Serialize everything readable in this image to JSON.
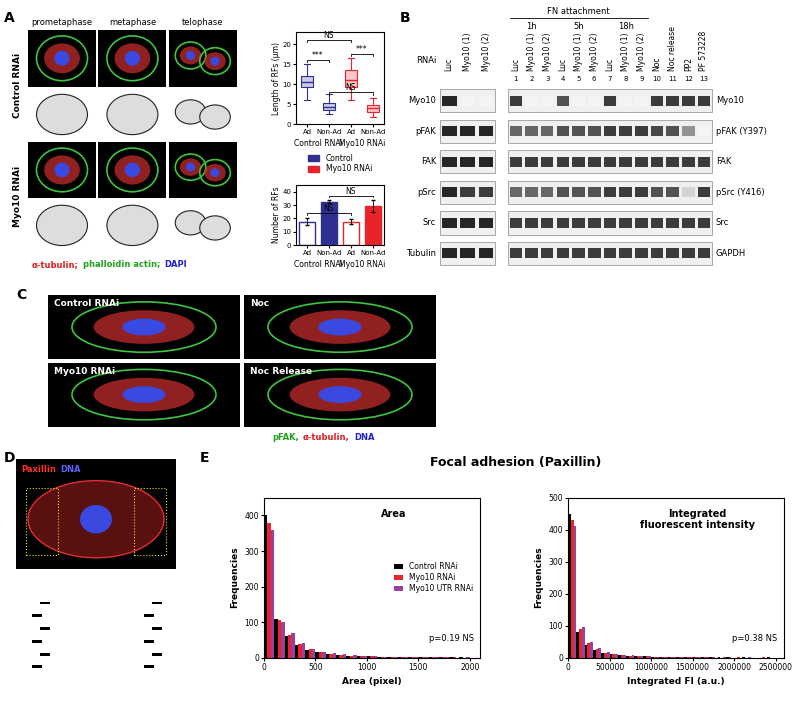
{
  "chart_data": [
    {
      "type": "box",
      "y_label": "Length of RFs (μm)",
      "categories": [
        "Ad",
        "Non-Ad",
        "Ad",
        "Non-Ad"
      ],
      "group_labels": [
        "Control RNAi",
        "Myo10 RNAi"
      ],
      "ylim": [
        0,
        23
      ],
      "yticks": [
        0,
        5,
        10,
        15,
        20
      ],
      "legend": "upper center",
      "series": [
        {
          "name": "Control",
          "color": "#2f3192",
          "stats": [
            {
              "whisker_low": 6,
              "q1": 9.2,
              "median": 10.5,
              "q3": 12,
              "whisker_high": 15
            },
            {
              "whisker_low": 2.6,
              "q1": 3.6,
              "median": 4.3,
              "q3": 5.3,
              "whisker_high": 7.5
            },
            null,
            null
          ]
        },
        {
          "name": "Myo10 RNAi",
          "color": "#e8232a",
          "stats": [
            null,
            null,
            {
              "whisker_low": 6,
              "q1": 9.3,
              "median": 11,
              "q3": 13.5,
              "whisker_high": 16.5
            },
            {
              "whisker_low": 1.8,
              "q1": 3,
              "median": 4,
              "q3": 4.8,
              "whisker_high": 6.5
            }
          ]
        }
      ],
      "annotations": [
        {
          "text": "NS",
          "from": 0,
          "to": 2,
          "y": 21
        },
        {
          "text": "***",
          "from": 0,
          "to": 1,
          "y": 16
        },
        {
          "text": "***",
          "from": 2,
          "to": 3,
          "y": 17.5
        },
        {
          "text": "NS",
          "from": 1,
          "to": 3,
          "y": 8
        }
      ]
    },
    {
      "type": "bar",
      "y_label": "Number of RFs",
      "categories": [
        "Ad",
        "Non-Ad",
        "Ad",
        "Non-Ad"
      ],
      "group_labels": [
        "Control RNAi",
        "Myo10 RNAi"
      ],
      "ylim": [
        0,
        45
      ],
      "yticks": [
        0,
        10,
        20,
        30,
        40
      ],
      "series": [
        {
          "color": "#2f3192",
          "values": [
            17.5,
            32.5,
            null,
            null
          ],
          "errors": [
            2.5,
            1,
            null,
            null
          ]
        },
        {
          "color": "#e8232a",
          "values": [
            null,
            null,
            17.5,
            29
          ],
          "errors": [
            null,
            null,
            2,
            4.5
          ]
        }
      ],
      "annotations": [
        {
          "text": "NS",
          "from": 0,
          "to": 2,
          "y": 24
        },
        {
          "text": "NS",
          "from": 1,
          "to": 3,
          "y": 37
        }
      ]
    },
    {
      "type": "histogram",
      "title": "Area",
      "x_label": "Area (pixel)",
      "y_label": "Frequencies",
      "bins": [
        0,
        100,
        200,
        300,
        400,
        500,
        600,
        700,
        800,
        900,
        1000,
        1100,
        1200,
        1300,
        1400,
        1500,
        1600,
        1700,
        1800,
        1900,
        2000
      ],
      "series": [
        {
          "name": "Control RNAi",
          "color": "#000000",
          "counts": [
            400,
            110,
            60,
            35,
            22,
            15,
            10,
            8,
            6,
            5,
            4,
            3,
            3,
            2,
            2,
            1,
            1,
            1,
            1,
            1
          ]
        },
        {
          "name": "Myo10 RNAi",
          "color": "#e8232a",
          "counts": [
            380,
            105,
            65,
            38,
            24,
            16,
            11,
            8,
            6,
            5,
            4,
            3,
            2,
            2,
            2,
            1,
            1,
            1,
            1,
            0
          ]
        },
        {
          "name": "Myo10 UTR RNAi",
          "color": "#9b3fa0",
          "counts": [
            360,
            100,
            70,
            40,
            25,
            17,
            12,
            9,
            7,
            5,
            4,
            3,
            3,
            2,
            1,
            1,
            1,
            1,
            0,
            1
          ]
        }
      ],
      "xlim": [
        0,
        2100
      ],
      "xticks": [
        0,
        500,
        1000,
        1500,
        2000
      ],
      "ylim": [
        0,
        450
      ],
      "yticks": [
        0,
        100,
        200,
        300,
        400
      ],
      "legend": "center right",
      "annotations": [
        "p=0.19 NS"
      ]
    },
    {
      "type": "histogram",
      "title": "Integrated\nfluorescent intensity",
      "x_label": "Integrated FI (a.u.)",
      "y_label": "Frequencies",
      "bins": [
        0,
        100000,
        200000,
        300000,
        400000,
        500000,
        600000,
        700000,
        800000,
        900000,
        1000000,
        1100000,
        1200000,
        1300000,
        1400000,
        1500000,
        1600000,
        1700000,
        1800000,
        1900000,
        2000000,
        2100000,
        2200000,
        2300000,
        2400000,
        2500000
      ],
      "series": [
        {
          "color": "#000000",
          "counts": [
            450,
            80,
            40,
            25,
            15,
            10,
            8,
            6,
            5,
            4,
            3,
            3,
            2,
            2,
            2,
            1,
            1,
            1,
            1,
            1,
            0,
            1,
            0,
            0,
            1
          ]
        },
        {
          "color": "#e8232a",
          "counts": [
            430,
            90,
            45,
            28,
            16,
            11,
            8,
            6,
            5,
            4,
            3,
            2,
            2,
            2,
            1,
            1,
            1,
            1,
            0,
            1,
            1,
            0,
            0,
            1,
            0
          ]
        },
        {
          "color": "#9b3fa0",
          "counts": [
            410,
            95,
            50,
            30,
            18,
            12,
            9,
            7,
            5,
            4,
            3,
            3,
            2,
            1,
            1,
            1,
            1,
            0,
            1,
            0,
            0,
            1,
            0,
            0,
            0
          ]
        }
      ],
      "xlim": [
        0,
        2600000
      ],
      "xticks": [
        0,
        500000,
        1000000,
        1500000,
        2000000,
        2500000
      ],
      "ylim": [
        0,
        500
      ],
      "yticks": [
        0,
        100,
        200,
        300,
        400,
        500
      ],
      "annotations": [
        "p=0.38 NS"
      ]
    }
  ],
  "panel_labels": [
    "A",
    "B",
    "C",
    "D",
    "E"
  ],
  "panel_a": {
    "stages": [
      "prometaphase",
      "metaphase",
      "telophase"
    ],
    "rows": [
      "Control RNAi",
      "Myo10 RNAi"
    ],
    "stain_caption": [
      {
        "text": "α-tubulin;",
        "color": "#e02020"
      },
      {
        "text": "phalloidin actin;",
        "color": "#1fa01f"
      },
      {
        "text": "DAPI",
        "color": "#2020d0"
      }
    ]
  },
  "panel_b": {
    "left_blot": {
      "lane_header": "RNAi",
      "lanes": [
        "Luc",
        "Myo10 (1)",
        "Myo10 (2)"
      ],
      "rows": [
        {
          "label": "Myo10",
          "band_intensity": [
            1,
            0.05,
            0.05
          ]
        },
        {
          "label": "pFAK",
          "band_intensity": [
            1,
            1,
            1
          ]
        },
        {
          "label": "FAK",
          "band_intensity": [
            1,
            1,
            1
          ]
        },
        {
          "label": "pSrc",
          "band_intensity": [
            1,
            0.9,
            0.9
          ]
        },
        {
          "label": "Src",
          "band_intensity": [
            1,
            1,
            1
          ]
        },
        {
          "label": "Tubulin",
          "band_intensity": [
            1,
            1,
            1
          ]
        }
      ]
    },
    "right_blot": {
      "header": "FN attachment",
      "time_points": [
        {
          "label": "1h",
          "lanes": [
            1,
            2,
            3
          ]
        },
        {
          "label": "5h",
          "lanes": [
            4,
            5,
            6
          ]
        },
        {
          "label": "18h",
          "lanes": [
            7,
            8,
            9
          ]
        }
      ],
      "lanes": [
        "Luc",
        "Myo10 (1)",
        "Myo10 (2)",
        "Luc",
        "Myo10 (1)",
        "Myo10 (2)",
        "Luc",
        "Myo10 (1)",
        "Myo10 (2)",
        "Noc",
        "Noc release",
        "PP2",
        "PF 573228"
      ],
      "lane_numbers": [
        1,
        2,
        3,
        4,
        5,
        6,
        7,
        8,
        9,
        10,
        11,
        12,
        13
      ],
      "rows": [
        {
          "label": "Myo10",
          "band_intensity": [
            0.9,
            0.05,
            0.05,
            0.8,
            0.05,
            0.05,
            0.9,
            0.05,
            0.05,
            0.9,
            0.9,
            0.9,
            0.9
          ]
        },
        {
          "label": "pFAK (Y397)",
          "band_intensity": [
            0.7,
            0.7,
            0.7,
            0.8,
            0.8,
            0.8,
            0.9,
            0.9,
            0.9,
            0.85,
            0.8,
            0.5,
            0.05
          ]
        },
        {
          "label": "FAK",
          "band_intensity": [
            0.9,
            0.9,
            0.9,
            0.9,
            0.9,
            0.9,
            0.9,
            0.9,
            0.9,
            0.9,
            0.9,
            0.9,
            0.9
          ]
        },
        {
          "label": "pSrc (Y416)",
          "band_intensity": [
            0.7,
            0.7,
            0.7,
            0.8,
            0.8,
            0.8,
            0.9,
            0.9,
            0.9,
            0.8,
            0.8,
            0.2,
            0.9
          ]
        },
        {
          "label": "Src",
          "band_intensity": [
            0.9,
            0.9,
            0.9,
            0.9,
            0.9,
            0.9,
            0.9,
            0.9,
            0.9,
            0.9,
            0.9,
            0.9,
            0.9
          ]
        },
        {
          "label": "GAPDH",
          "band_intensity": [
            0.9,
            0.9,
            0.9,
            0.9,
            0.9,
            0.9,
            0.9,
            0.9,
            0.9,
            0.9,
            0.9,
            0.9,
            0.9
          ]
        }
      ]
    }
  },
  "panel_c": {
    "images": [
      "Control RNAi",
      "Noc",
      "Myo10 RNAi",
      "Noc Release"
    ],
    "stain_caption": [
      {
        "text": "pFAK,",
        "color": "#1fa01f"
      },
      {
        "text": "α-tubulin,",
        "color": "#e02020"
      },
      {
        "text": "DNA",
        "color": "#2020d0"
      }
    ]
  },
  "panel_d": {
    "stain_caption": [
      {
        "text": "Paxillin",
        "color": "#ff3030"
      },
      {
        "text": "DNA",
        "color": "#6060ff"
      }
    ]
  },
  "panel_e": {
    "title": "Focal adhesion (Paxillin)"
  }
}
